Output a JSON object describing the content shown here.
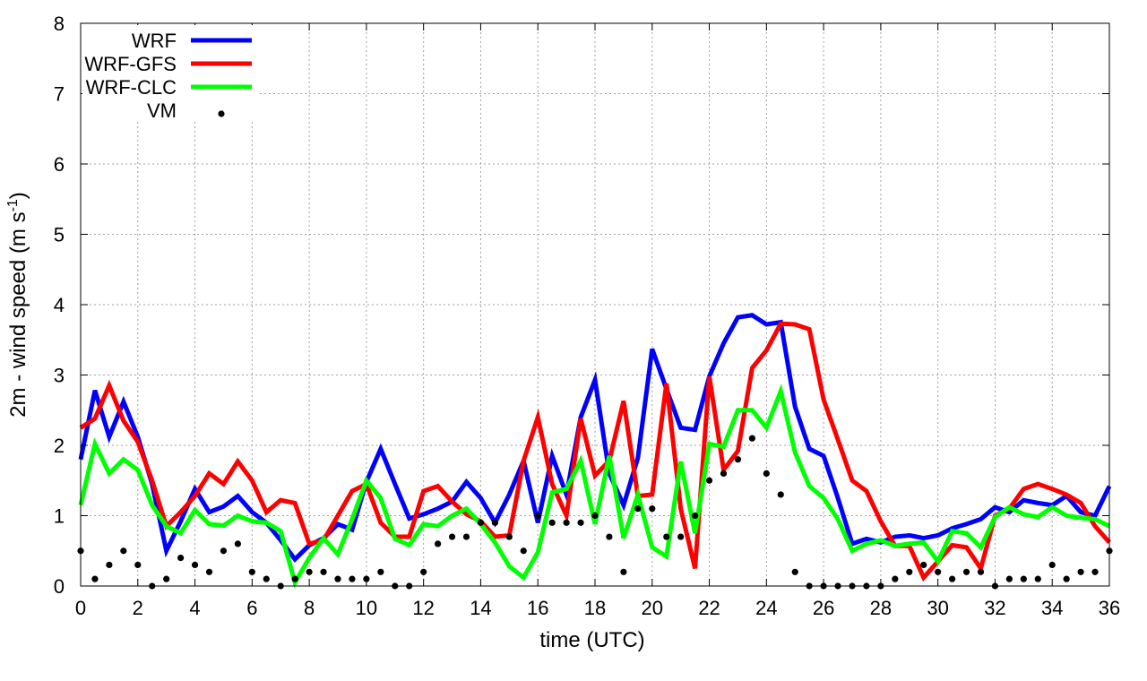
{
  "chart_data": {
    "type": "line",
    "xlabel": "time (UTC)",
    "ylabel_main": "2m - wind speed  (m s",
    "ylabel_sup": "-1",
    "ylabel_close": ")",
    "xlim": [
      0,
      36
    ],
    "ylim": [
      0,
      8
    ],
    "xticks": [
      0,
      2,
      4,
      6,
      8,
      10,
      12,
      14,
      16,
      18,
      20,
      22,
      24,
      26,
      28,
      30,
      32,
      34,
      36
    ],
    "yticks": [
      0,
      1,
      2,
      3,
      4,
      5,
      6,
      7,
      8
    ],
    "grid": true,
    "legend_position": "top-left",
    "x": [
      0,
      0.5,
      1,
      1.5,
      2,
      2.5,
      3,
      3.5,
      4,
      4.5,
      5,
      5.5,
      6,
      6.5,
      7,
      7.5,
      8,
      8.5,
      9,
      9.5,
      10,
      10.5,
      11,
      11.5,
      12,
      12.5,
      13,
      13.5,
      14,
      14.5,
      15,
      15.5,
      16,
      16.5,
      17,
      17.5,
      18,
      18.5,
      19,
      19.5,
      20,
      20.5,
      21,
      21.5,
      22,
      22.5,
      23,
      23.5,
      24,
      24.5,
      25,
      25.5,
      26,
      26.5,
      27,
      27.5,
      28,
      28.5,
      29,
      29.5,
      30,
      30.5,
      31,
      31.5,
      32,
      32.5,
      33,
      33.5,
      34,
      34.5,
      35,
      35.5,
      36
    ],
    "series": [
      {
        "name": "WRF",
        "color": "#0000ff",
        "style": "line",
        "values": [
          1.8,
          2.78,
          2.12,
          2.62,
          2.12,
          1.45,
          0.5,
          0.92,
          1.38,
          1.05,
          1.13,
          1.28,
          1.05,
          0.9,
          0.65,
          0.38,
          0.58,
          0.68,
          0.88,
          0.8,
          1.48,
          1.95,
          1.45,
          0.96,
          1.02,
          1.1,
          1.2,
          1.48,
          1.25,
          0.9,
          1.3,
          1.78,
          0.9,
          1.85,
          1.3,
          2.4,
          2.93,
          1.6,
          1.15,
          1.82,
          3.37,
          2.8,
          2.25,
          2.22,
          2.98,
          3.45,
          3.82,
          3.85,
          3.72,
          3.75,
          2.55,
          1.95,
          1.85,
          1.25,
          0.6,
          0.67,
          0.62,
          0.7,
          0.72,
          0.68,
          0.72,
          0.82,
          0.88,
          0.95,
          1.12,
          1.05,
          1.22,
          1.18,
          1.15,
          1.28,
          1.05,
          1.0,
          1.42
        ]
      },
      {
        "name": "WRF-GFS",
        "color": "#ff0000",
        "style": "line",
        "values": [
          2.25,
          2.38,
          2.85,
          2.35,
          2.05,
          1.5,
          0.85,
          1.05,
          1.28,
          1.6,
          1.45,
          1.77,
          1.5,
          1.05,
          1.22,
          1.18,
          0.6,
          0.65,
          1.0,
          1.35,
          1.45,
          0.9,
          0.7,
          0.7,
          1.35,
          1.42,
          1.2,
          1.02,
          0.92,
          0.7,
          0.72,
          1.78,
          2.4,
          1.45,
          1.0,
          2.38,
          1.57,
          1.78,
          2.63,
          1.28,
          1.3,
          2.88,
          1.1,
          0.25,
          2.98,
          1.65,
          1.92,
          3.1,
          3.35,
          3.73,
          3.72,
          3.65,
          2.65,
          2.08,
          1.5,
          1.35,
          0.92,
          0.57,
          0.57,
          0.12,
          0.35,
          0.58,
          0.55,
          0.25,
          1.0,
          1.1,
          1.38,
          1.45,
          1.38,
          1.3,
          1.18,
          0.85,
          0.62
        ]
      },
      {
        "name": "WRF-CLC",
        "color": "#00ff00",
        "style": "line",
        "values": [
          1.15,
          2.02,
          1.6,
          1.8,
          1.65,
          1.15,
          0.85,
          0.75,
          1.08,
          0.88,
          0.86,
          1.0,
          0.92,
          0.9,
          0.78,
          0.05,
          0.4,
          0.68,
          0.45,
          0.95,
          1.5,
          1.25,
          0.67,
          0.58,
          0.88,
          0.85,
          1.0,
          1.1,
          0.88,
          0.62,
          0.28,
          0.12,
          0.48,
          1.33,
          1.38,
          1.78,
          0.88,
          1.85,
          0.68,
          1.3,
          0.55,
          0.42,
          1.77,
          0.75,
          2.02,
          1.98,
          2.5,
          2.5,
          2.25,
          2.77,
          1.9,
          1.42,
          1.25,
          0.95,
          0.5,
          0.6,
          0.65,
          0.57,
          0.6,
          0.62,
          0.35,
          0.78,
          0.75,
          0.55,
          0.98,
          1.12,
          1.02,
          0.98,
          1.12,
          1.0,
          0.97,
          0.95,
          0.85
        ]
      },
      {
        "name": "VM",
        "color": "#000000",
        "style": "points",
        "values": [
          0.5,
          0.1,
          0.3,
          0.5,
          0.3,
          0.0,
          0.1,
          0.4,
          0.3,
          0.2,
          0.5,
          0.6,
          0.2,
          0.1,
          0.0,
          0.1,
          0.2,
          0.2,
          0.1,
          0.1,
          0.1,
          0.2,
          0.0,
          0.0,
          0.2,
          0.6,
          0.7,
          0.7,
          0.9,
          0.9,
          0.7,
          0.5,
          1.0,
          0.9,
          0.9,
          0.9,
          1.0,
          0.7,
          0.2,
          1.1,
          1.1,
          0.7,
          0.7,
          1.0,
          1.5,
          1.6,
          1.8,
          2.1,
          1.6,
          1.3,
          0.2,
          0.0,
          0.0,
          0.0,
          0.0,
          0.0,
          0.0,
          0.1,
          0.2,
          0.3,
          0.2,
          0.1,
          0.2,
          0.2,
          0.0,
          0.1,
          0.1,
          0.1,
          0.3,
          0.1,
          0.2,
          0.2,
          0.5
        ]
      }
    ]
  }
}
